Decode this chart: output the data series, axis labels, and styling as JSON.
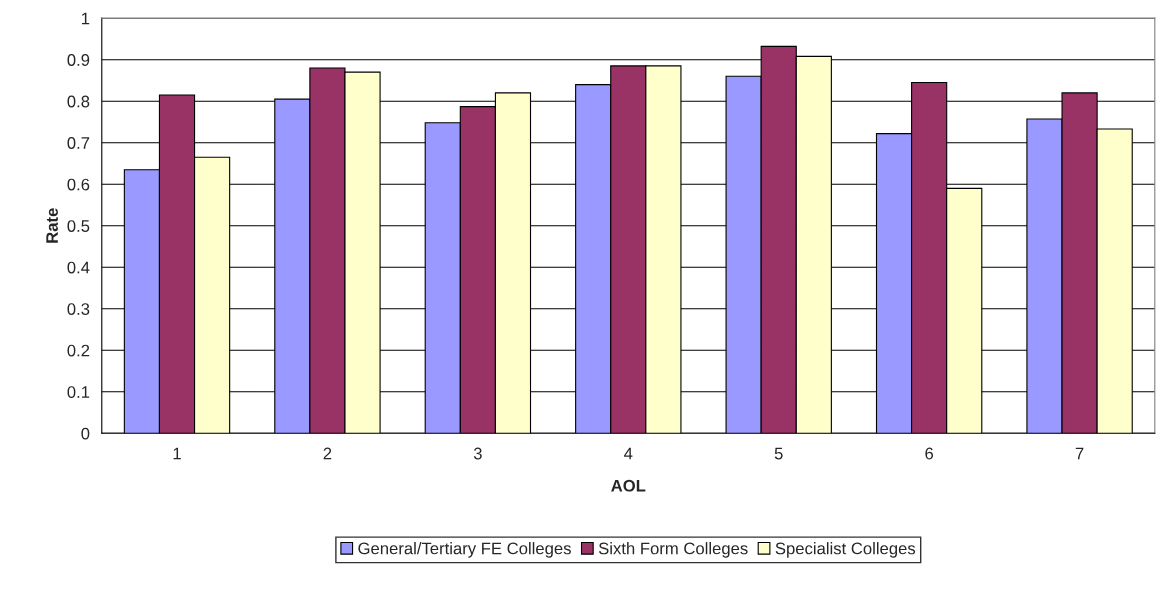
{
  "chart_data": {
    "type": "bar",
    "xlabel": "AOL",
    "ylabel": "Rate",
    "categories": [
      "1",
      "2",
      "3",
      "4",
      "5",
      "6",
      "7"
    ],
    "series": [
      {
        "name": "General/Tertiary FE Colleges",
        "color": "#9999ff",
        "values": [
          0.635,
          0.805,
          0.748,
          0.84,
          0.86,
          0.722,
          0.757
        ]
      },
      {
        "name": "Sixth Form Colleges",
        "color": "#993366",
        "values": [
          0.815,
          0.88,
          0.787,
          0.885,
          0.932,
          0.845,
          0.82
        ]
      },
      {
        "name": "Specialist Colleges",
        "color": "#ffffcc",
        "values": [
          0.665,
          0.87,
          0.82,
          0.885,
          0.908,
          0.59,
          0.733
        ]
      }
    ],
    "ylim": [
      0,
      1
    ],
    "yticks": [
      0,
      0.1,
      0.2,
      0.3,
      0.4,
      0.5,
      0.6,
      0.7,
      0.8,
      0.9,
      1
    ],
    "grid": "y",
    "legend": "bottom"
  }
}
